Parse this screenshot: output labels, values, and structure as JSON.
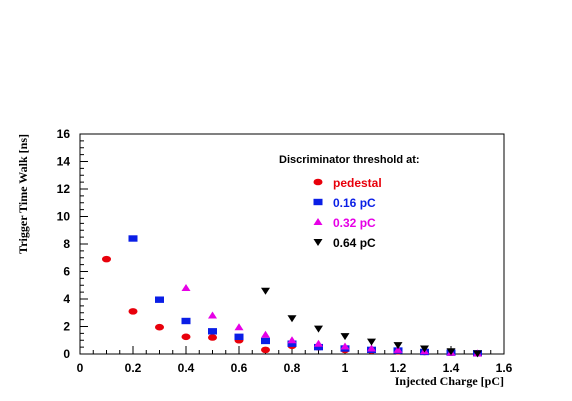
{
  "chart_data": {
    "type": "scatter",
    "title": "",
    "xlabel": "Injected Charge [pC]",
    "ylabel": "Trigger Time Walk [ns]",
    "xlim": [
      0,
      1.6
    ],
    "ylim": [
      0,
      16
    ],
    "x_ticks": [
      "0",
      "0.2",
      "0.4",
      "0.6",
      "0.8",
      "1",
      "1.2",
      "1.4",
      "1.6"
    ],
    "y_ticks": [
      "0",
      "2",
      "4",
      "6",
      "8",
      "10",
      "12",
      "14",
      "16"
    ],
    "grid": false,
    "legend": {
      "title": "Discriminator threshold at:",
      "placement": "top-right"
    },
    "series": [
      {
        "name": "pedestal",
        "color": "#e8000b",
        "marker": "circle",
        "points": [
          [
            0.1,
            6.9
          ],
          [
            0.2,
            3.1
          ],
          [
            0.3,
            1.95
          ],
          [
            0.4,
            1.25
          ],
          [
            0.5,
            1.2
          ],
          [
            0.6,
            1.0
          ],
          [
            0.7,
            0.3
          ],
          [
            0.8,
            0.6
          ],
          [
            0.9,
            0.5
          ],
          [
            1.0,
            0.3
          ],
          [
            1.1,
            0.25
          ],
          [
            1.2,
            0.2
          ],
          [
            1.3,
            0.15
          ],
          [
            1.4,
            0.1
          ],
          [
            1.5,
            0.05
          ]
        ]
      },
      {
        "name": "0.16 pC",
        "color": "#0a1ee6",
        "marker": "square",
        "points": [
          [
            0.2,
            8.4
          ],
          [
            0.3,
            3.95
          ],
          [
            0.4,
            2.4
          ],
          [
            0.5,
            1.65
          ],
          [
            0.6,
            1.25
          ],
          [
            0.7,
            0.95
          ],
          [
            0.8,
            0.75
          ],
          [
            0.9,
            0.5
          ],
          [
            1.0,
            0.4
          ],
          [
            1.1,
            0.3
          ],
          [
            1.2,
            0.25
          ],
          [
            1.3,
            0.15
          ],
          [
            1.4,
            0.1
          ],
          [
            1.5,
            0.05
          ]
        ]
      },
      {
        "name": "0.32 pC",
        "color": "#e600e6",
        "marker": "triangle-up",
        "points": [
          [
            0.4,
            4.8
          ],
          [
            0.5,
            2.8
          ],
          [
            0.6,
            1.95
          ],
          [
            0.7,
            1.4
          ],
          [
            0.8,
            1.0
          ],
          [
            0.9,
            0.75
          ],
          [
            1.0,
            0.55
          ],
          [
            1.1,
            0.4
          ],
          [
            1.2,
            0.3
          ],
          [
            1.3,
            0.2
          ],
          [
            1.4,
            0.1
          ],
          [
            1.5,
            0.05
          ]
        ]
      },
      {
        "name": "0.64 pC",
        "color": "#000000",
        "marker": "triangle-down",
        "points": [
          [
            0.7,
            4.6
          ],
          [
            0.8,
            2.6
          ],
          [
            0.9,
            1.85
          ],
          [
            1.0,
            1.3
          ],
          [
            1.1,
            0.9
          ],
          [
            1.2,
            0.65
          ],
          [
            1.3,
            0.4
          ],
          [
            1.4,
            0.2
          ],
          [
            1.5,
            0.05
          ]
        ]
      }
    ]
  }
}
